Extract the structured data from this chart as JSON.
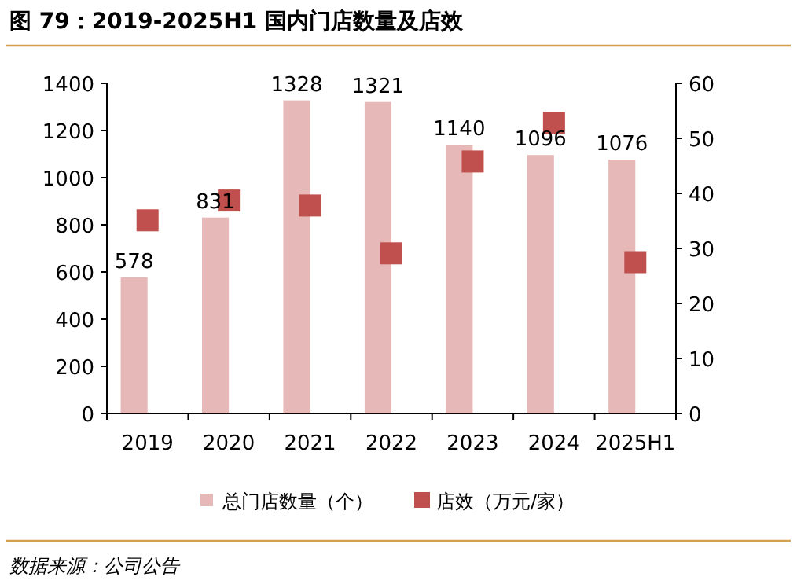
{
  "chart_data": {
    "type": "bar",
    "title": "图 79：2019-2025H1 国内门店数量及店效",
    "categories": [
      "2019",
      "2020",
      "2021",
      "2022",
      "2023",
      "2024",
      "2025H1"
    ],
    "series": [
      {
        "name": "总门店数量（个）",
        "color": "#e6b8b7",
        "values": [
          578,
          831,
          1328,
          1321,
          1140,
          1096,
          1076
        ],
        "value_labels": [
          "578",
          "831",
          "1328",
          "1321",
          "1140",
          "1096",
          "1076"
        ]
      },
      {
        "name": "店效（万元/家）",
        "type": "scatter",
        "axis": "y2",
        "color": "#c0504d",
        "values": [
          35.1,
          38.7,
          37.8,
          29.1,
          45.8,
          52.8,
          27.5
        ]
      }
    ],
    "ylim": [
      0,
      1400
    ],
    "yticks": [
      0,
      200,
      400,
      600,
      800,
      1000,
      1200,
      1400
    ],
    "y2lim": [
      0,
      60
    ],
    "y2ticks": [
      0,
      10,
      20,
      30,
      40,
      50,
      60
    ],
    "marker": "square",
    "legend": "bottom",
    "annotations": [
      "数据来源：公司公告"
    ]
  }
}
